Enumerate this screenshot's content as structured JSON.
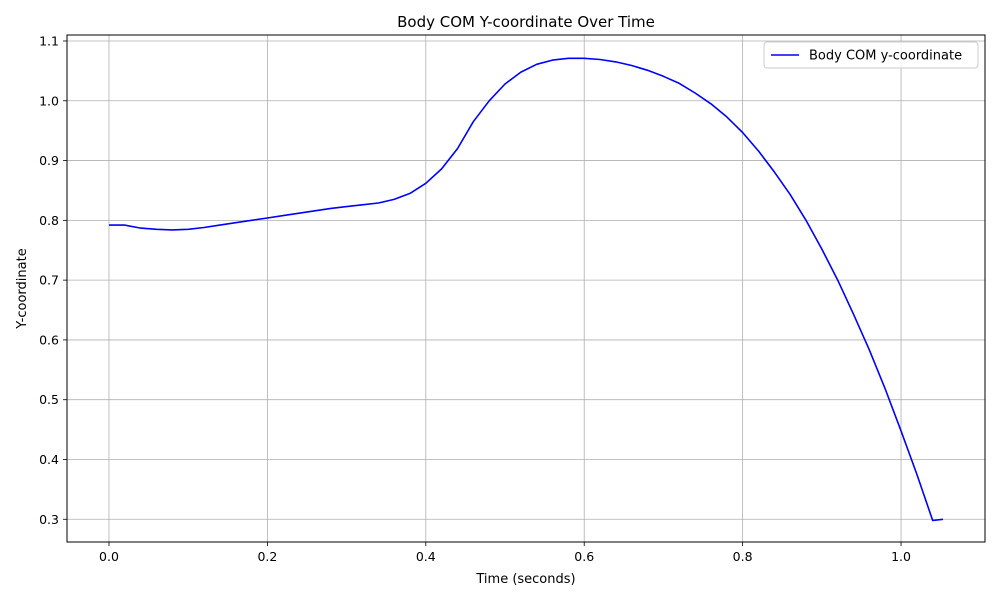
{
  "chart_data": {
    "type": "line",
    "title": "Body COM Y-coordinate Over Time",
    "xlabel": "Time (seconds)",
    "ylabel": "Y-coordinate",
    "xlim": [
      -0.053,
      1.106
    ],
    "ylim": [
      0.262,
      1.11
    ],
    "x_ticks": [
      0.0,
      0.2,
      0.4,
      0.6,
      0.8,
      1.0
    ],
    "x_tick_labels": [
      "0.0",
      "0.2",
      "0.4",
      "0.6",
      "0.8",
      "1.0"
    ],
    "y_ticks": [
      0.3,
      0.4,
      0.5,
      0.6,
      0.7,
      0.8,
      0.9,
      1.0,
      1.1
    ],
    "y_tick_labels": [
      "0.3",
      "0.4",
      "0.5",
      "0.6",
      "0.7",
      "0.8",
      "0.9",
      "1.0",
      "1.1"
    ],
    "grid": true,
    "legend_position": "top-right",
    "series": [
      {
        "name": "Body COM y-coordinate",
        "color": "#0000ff",
        "x": [
          0.0,
          0.02,
          0.04,
          0.06,
          0.08,
          0.1,
          0.12,
          0.14,
          0.16,
          0.18,
          0.2,
          0.22,
          0.24,
          0.26,
          0.28,
          0.3,
          0.32,
          0.34,
          0.36,
          0.38,
          0.4,
          0.42,
          0.44,
          0.46,
          0.48,
          0.5,
          0.52,
          0.54,
          0.56,
          0.58,
          0.6,
          0.62,
          0.64,
          0.66,
          0.68,
          0.7,
          0.72,
          0.74,
          0.76,
          0.78,
          0.8,
          0.82,
          0.84,
          0.86,
          0.88,
          0.9,
          0.92,
          0.94,
          0.96,
          0.98,
          1.0,
          1.02,
          1.04,
          1.053
        ],
        "y": [
          0.792,
          0.792,
          0.787,
          0.785,
          0.784,
          0.785,
          0.788,
          0.792,
          0.796,
          0.8,
          0.804,
          0.808,
          0.812,
          0.816,
          0.82,
          0.823,
          0.826,
          0.829,
          0.835,
          0.845,
          0.862,
          0.886,
          0.92,
          0.965,
          1.0,
          1.028,
          1.048,
          1.061,
          1.068,
          1.071,
          1.071,
          1.069,
          1.065,
          1.059,
          1.051,
          1.041,
          1.029,
          1.013,
          0.995,
          0.973,
          0.947,
          0.916,
          0.881,
          0.843,
          0.8,
          0.752,
          0.7,
          0.643,
          0.583,
          0.518,
          0.448,
          0.375,
          0.298,
          0.3
        ]
      }
    ]
  }
}
